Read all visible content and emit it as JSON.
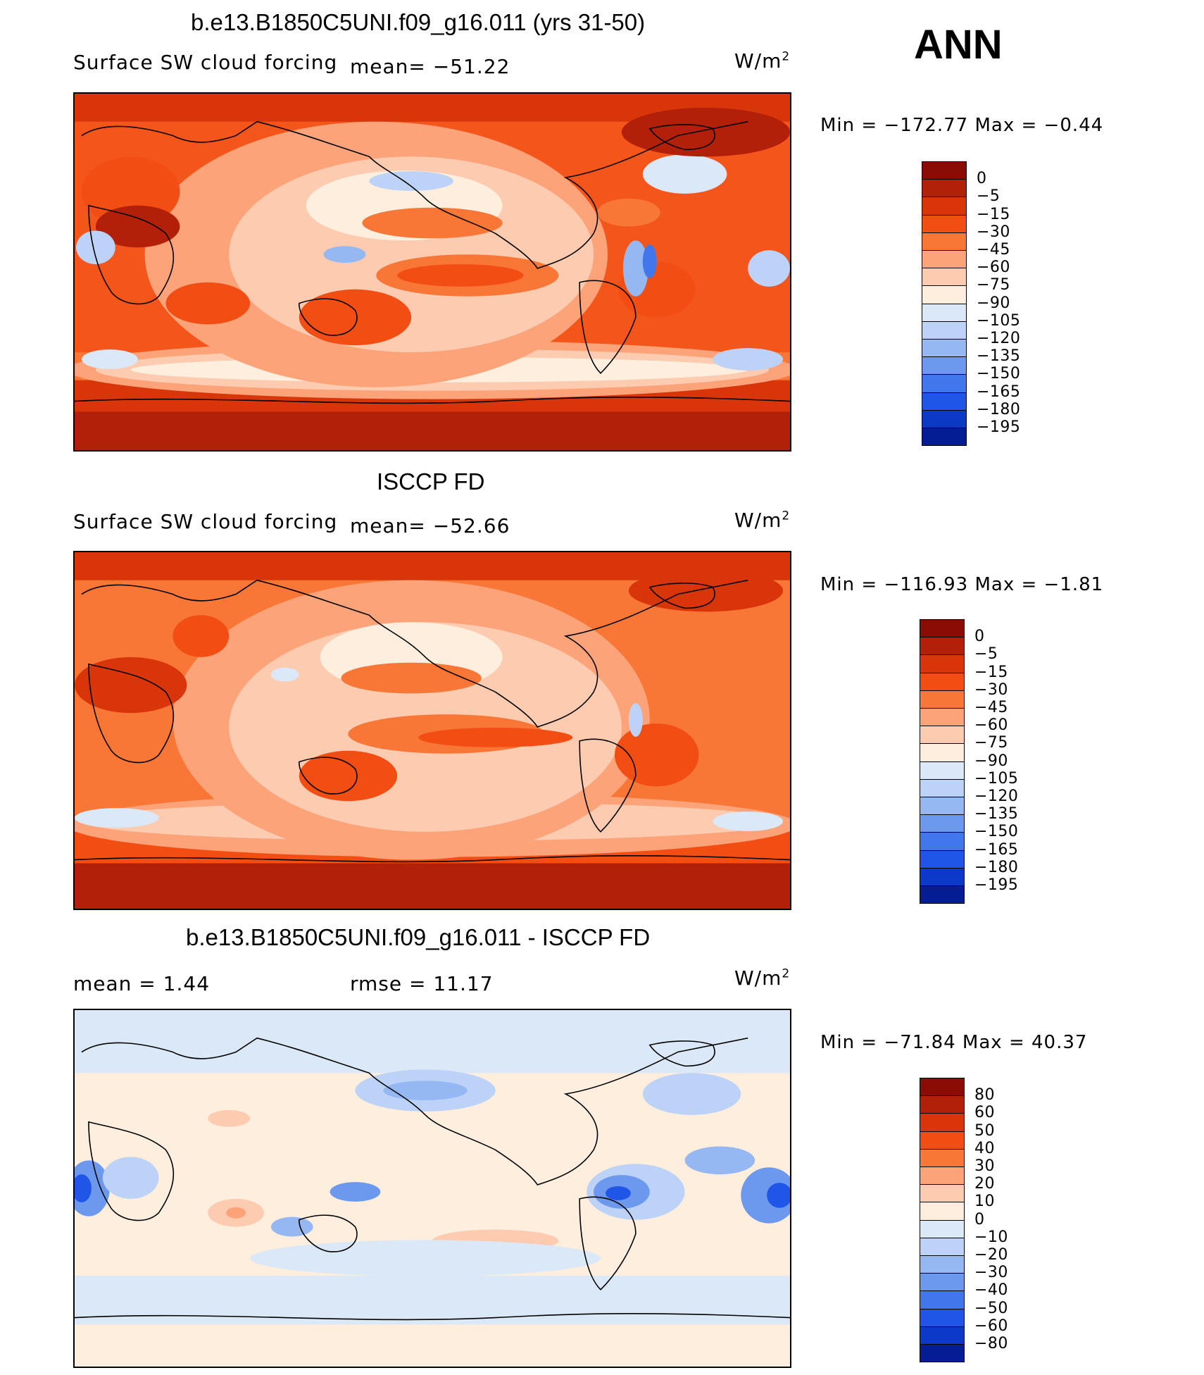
{
  "header": {
    "season": "ANN"
  },
  "panels": [
    {
      "title": "b.e13.B1850C5UNI.f09_g16.011 (yrs 31-50)",
      "left_label": "Surface SW cloud forcing",
      "mid_label": "mean=  −51.22",
      "unit_base": "W/m",
      "unit_exp": "2",
      "minmax": "Min  =  −172.77  Max  =    −0.44",
      "colorbar": {
        "colors": [
          "#8a0c05",
          "#b3200a",
          "#d8350b",
          "#f24e14",
          "#f87636",
          "#fca37a",
          "#fdcbb0",
          "#fdeede",
          "#dbe8f8",
          "#bcd3f7",
          "#95b8f3",
          "#6c99ee",
          "#4177ea",
          "#1f56e8",
          "#0c39c8",
          "#041c94"
        ],
        "labels": [
          "0",
          "−5",
          "−15",
          "−30",
          "−45",
          "−60",
          "−75",
          "−90",
          "−105",
          "−120",
          "−135",
          "−150",
          "−165",
          "−180",
          "−195"
        ]
      }
    },
    {
      "title": "ISCCP FD",
      "left_label": "Surface SW cloud forcing",
      "mid_label": "mean=  −52.66",
      "unit_base": "W/m",
      "unit_exp": "2",
      "minmax": "Min  =  −116.93  Max  =    −1.81",
      "colorbar": {
        "colors": [
          "#8a0c05",
          "#b3200a",
          "#d8350b",
          "#f24e14",
          "#f87636",
          "#fca37a",
          "#fdcbb0",
          "#fdeede",
          "#dbe8f8",
          "#bcd3f7",
          "#95b8f3",
          "#6c99ee",
          "#4177ea",
          "#1f56e8",
          "#0c39c8",
          "#041c94"
        ],
        "labels": [
          "0",
          "−5",
          "−15",
          "−30",
          "−45",
          "−60",
          "−75",
          "−90",
          "−105",
          "−120",
          "−135",
          "−150",
          "−165",
          "−180",
          "−195"
        ]
      }
    },
    {
      "title": "b.e13.B1850C5UNI.f09_g16.011 - ISCCP FD",
      "left_label": "mean  =     1.44",
      "mid_label": "rmse  =    11.17",
      "unit_base": "W/m",
      "unit_exp": "2",
      "minmax": "Min  =  −71.84  Max  =    40.37",
      "colorbar": {
        "colors": [
          "#8a0c05",
          "#b3200a",
          "#d8350b",
          "#f24e14",
          "#f87636",
          "#fca37a",
          "#fdcbb0",
          "#fdeede",
          "#dbe8f8",
          "#bcd3f7",
          "#95b8f3",
          "#6c99ee",
          "#4177ea",
          "#1f56e8",
          "#0c39c8",
          "#041c94"
        ],
        "labels": [
          "80",
          "60",
          "50",
          "40",
          "30",
          "20",
          "10",
          "0",
          "−10",
          "−20",
          "−30",
          "−40",
          "−50",
          "−60",
          "−80"
        ]
      }
    }
  ]
}
